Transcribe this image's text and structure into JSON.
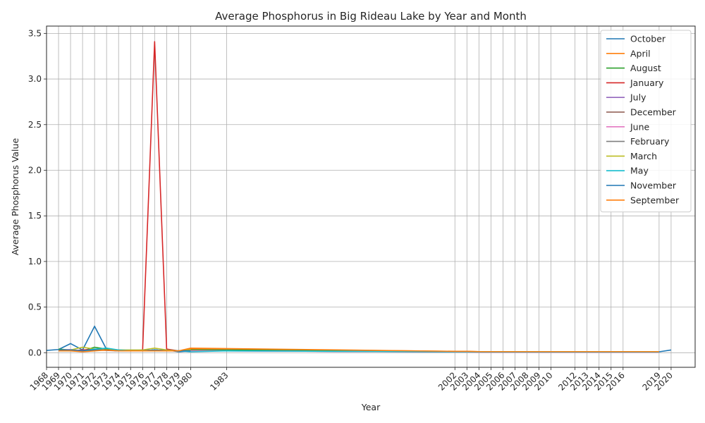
{
  "chart_data": {
    "type": "line",
    "title": "Average Phosphorus in Big Rideau Lake by Year and Month",
    "xlabel": "Year",
    "ylabel": "Average Phosphorus Value",
    "xlim": [
      1968,
      2022
    ],
    "ylim": [
      -0.16,
      3.58
    ],
    "yticks": [
      "0.0",
      "0.5",
      "1.0",
      "1.5",
      "2.0",
      "2.5",
      "3.0",
      "3.5"
    ],
    "ytick_values": [
      0,
      0.5,
      1,
      1.5,
      2,
      2.5,
      3,
      3.5
    ],
    "xticks": [
      {
        "year": 1968,
        "label": "1968"
      },
      {
        "year": 1969,
        "label": "1969"
      },
      {
        "year": 1970,
        "label": "1970"
      },
      {
        "year": 1971,
        "label": "1971"
      },
      {
        "year": 1972,
        "label": "1972"
      },
      {
        "year": 1973,
        "label": "1973"
      },
      {
        "year": 1974,
        "label": "1974"
      },
      {
        "year": 1975,
        "label": "1975"
      },
      {
        "year": 1976,
        "label": "1976"
      },
      {
        "year": 1977,
        "label": "1977"
      },
      {
        "year": 1978,
        "label": "1978"
      },
      {
        "year": 1979,
        "label": "1979"
      },
      {
        "year": 1980,
        "label": "1980"
      },
      {
        "year": 1983,
        "label": "1983"
      },
      {
        "year": 2002,
        "label": "2002"
      },
      {
        "year": 2003,
        "label": "2003"
      },
      {
        "year": 2004,
        "label": "2004"
      },
      {
        "year": 2005,
        "label": "2005"
      },
      {
        "year": 2006,
        "label": "2006"
      },
      {
        "year": 2007,
        "label": "2007"
      },
      {
        "year": 2008,
        "label": "2008"
      },
      {
        "year": 2009,
        "label": "2009"
      },
      {
        "year": 2010,
        "label": "2010"
      },
      {
        "year": 2012,
        "label": "2012"
      },
      {
        "year": 2013,
        "label": "2013"
      },
      {
        "year": 2014,
        "label": "2014"
      },
      {
        "year": 2015,
        "label": "2015"
      },
      {
        "year": 2016,
        "label": "2016"
      },
      {
        "year": 2019,
        "label": "2019"
      },
      {
        "year": 2020,
        "label": "2020"
      }
    ],
    "grid": true,
    "legend_position": "upper right",
    "series": [
      {
        "name": "October",
        "color": "#1f77b4",
        "x": [
          1968,
          1969,
          1970,
          1971,
          1972,
          1973,
          1974,
          1975,
          1976,
          1977,
          1978,
          1979,
          1980,
          1983,
          2003,
          2005,
          2007,
          2009,
          2012,
          2015,
          2019,
          2020
        ],
        "y": [
          0.025,
          0.035,
          0.1,
          0.03,
          0.29,
          0.035,
          0.025,
          0.02,
          0.02,
          0.02,
          0.03,
          0.01,
          0.02,
          0.02,
          0.01,
          0.01,
          0.01,
          0.01,
          0.01,
          0.01,
          0.01,
          0.03
        ]
      },
      {
        "name": "April",
        "color": "#ff7f0e",
        "x": [
          1969,
          1970,
          1971,
          1972,
          1973,
          1974,
          1975,
          1976,
          1977,
          1978,
          1979,
          1980,
          1983,
          2002,
          2003,
          2004,
          2005,
          2006,
          2007,
          2008,
          2009,
          2010,
          2012,
          2013,
          2014,
          2015,
          2016,
          2019
        ],
        "y": [
          0.03,
          0.02,
          0.02,
          0.03,
          0.03,
          0.025,
          0.02,
          0.02,
          0.03,
          0.02,
          0.02,
          0.04,
          0.04,
          0.015,
          0.015,
          0.012,
          0.01,
          0.01,
          0.01,
          0.01,
          0.01,
          0.01,
          0.01,
          0.01,
          0.01,
          0.01,
          0.01,
          0.01
        ]
      },
      {
        "name": "August",
        "color": "#2ca02c",
        "x": [
          1969,
          1970,
          1971,
          1972,
          1973,
          1974,
          1975,
          1976,
          1977,
          1978,
          1979,
          1980,
          1983,
          2002,
          2003,
          2004,
          2005,
          2006,
          2007,
          2008,
          2009,
          2010,
          2012,
          2013,
          2014,
          2015,
          2016,
          2019
        ],
        "y": [
          0.04,
          0.03,
          0.02,
          0.06,
          0.04,
          0.03,
          0.025,
          0.02,
          0.03,
          0.02,
          0.02,
          0.03,
          0.03,
          0.01,
          0.01,
          0.008,
          0.008,
          0.008,
          0.008,
          0.008,
          0.008,
          0.008,
          0.008,
          0.008,
          0.008,
          0.008,
          0.008,
          0.008
        ]
      },
      {
        "name": "January",
        "color": "#d62728",
        "x": [
          1969,
          1970,
          1971,
          1972,
          1973,
          1974,
          1975,
          1976,
          1977,
          1978,
          1979
        ],
        "y": [
          0.03,
          0.02,
          0.03,
          0.04,
          0.03,
          0.02,
          0.02,
          0.03,
          3.41,
          0.04,
          0.02
        ]
      },
      {
        "name": "July",
        "color": "#9467bd",
        "x": [
          1969,
          1970,
          1971,
          1972,
          1973,
          1974,
          1975,
          1976,
          1977,
          1978,
          1979,
          1980,
          1983,
          2002,
          2003,
          2004,
          2005,
          2006,
          2007,
          2008,
          2009,
          2010,
          2012,
          2013,
          2014,
          2015,
          2016,
          2019
        ],
        "y": [
          0.03,
          0.02,
          0.02,
          0.03,
          0.03,
          0.02,
          0.02,
          0.02,
          0.03,
          0.02,
          0.02,
          0.02,
          0.02,
          0.008,
          0.008,
          0.007,
          0.007,
          0.007,
          0.007,
          0.007,
          0.007,
          0.007,
          0.007,
          0.007,
          0.007,
          0.007,
          0.007,
          0.007
        ]
      },
      {
        "name": "December",
        "color": "#8c564b",
        "x": [
          1969,
          1970,
          1971,
          1972,
          1973,
          1974,
          1975,
          1976,
          1977,
          1978,
          1979
        ],
        "y": [
          0.03,
          0.025,
          0.02,
          0.03,
          0.025,
          0.02,
          0.02,
          0.02,
          0.03,
          0.02,
          0.02
        ]
      },
      {
        "name": "June",
        "color": "#e377c2",
        "x": [
          1969,
          1970,
          1971,
          1972,
          1973,
          1974,
          1975,
          1976,
          1977,
          1978,
          1979,
          1980,
          1983,
          2002,
          2003,
          2004,
          2005,
          2006,
          2007,
          2008,
          2009,
          2010,
          2012,
          2013,
          2014,
          2015,
          2016,
          2019
        ],
        "y": [
          0.03,
          0.035,
          0.02,
          0.025,
          0.03,
          0.02,
          0.02,
          0.02,
          0.025,
          0.02,
          0.02,
          0.02,
          0.02,
          0.008,
          0.008,
          0.007,
          0.007,
          0.007,
          0.007,
          0.007,
          0.007,
          0.007,
          0.007,
          0.007,
          0.007,
          0.007,
          0.007,
          0.007
        ]
      },
      {
        "name": "February",
        "color": "#7f7f7f",
        "x": [
          1969,
          1970,
          1971,
          1972,
          1973,
          1974,
          1975,
          1976,
          1977,
          1978,
          1979
        ],
        "y": [
          0.03,
          0.02,
          0.02,
          0.03,
          0.03,
          0.02,
          0.02,
          0.02,
          0.03,
          0.02,
          0.02
        ]
      },
      {
        "name": "March",
        "color": "#bcbd22",
        "x": [
          1969,
          1970,
          1971,
          1972,
          1973,
          1974,
          1975,
          1976,
          1977,
          1978,
          1979,
          1980
        ],
        "y": [
          0.03,
          0.03,
          0.06,
          0.04,
          0.03,
          0.03,
          0.03,
          0.03,
          0.05,
          0.03,
          0.02,
          0.03
        ]
      },
      {
        "name": "May",
        "color": "#17becf",
        "x": [
          1969,
          1970,
          1971,
          1972,
          1973,
          1974,
          1975,
          1976,
          1977,
          1978,
          1979,
          1980,
          1983,
          2002,
          2003,
          2004,
          2005,
          2006,
          2007,
          2008,
          2009,
          2010,
          2012,
          2013,
          2014,
          2015,
          2016,
          2019
        ],
        "y": [
          0.03,
          0.02,
          0.02,
          0.04,
          0.05,
          0.03,
          0.02,
          0.02,
          0.03,
          0.02,
          0.02,
          0.01,
          0.02,
          0.01,
          0.01,
          0.008,
          0.008,
          0.008,
          0.008,
          0.008,
          0.008,
          0.008,
          0.008,
          0.008,
          0.008,
          0.008,
          0.008,
          0.008
        ]
      },
      {
        "name": "November",
        "color": "#1f77b4",
        "x": [
          1969,
          1970,
          1971,
          1972,
          1973,
          1974,
          1975,
          1976,
          1977,
          1978,
          1979,
          1980
        ],
        "y": [
          0.03,
          0.03,
          0.02,
          0.03,
          0.03,
          0.02,
          0.02,
          0.02,
          0.03,
          0.02,
          0.02,
          0.02
        ]
      },
      {
        "name": "September",
        "color": "#ff7f0e",
        "x": [
          1969,
          1970,
          1971,
          1972,
          1973,
          1974,
          1975,
          1976,
          1977,
          1978,
          1979,
          1980,
          1983,
          2002,
          2003,
          2004,
          2005,
          2006,
          2007,
          2008,
          2009,
          2010,
          2012,
          2013,
          2014,
          2015,
          2016,
          2019
        ],
        "y": [
          0.02,
          0.02,
          0.01,
          0.02,
          0.03,
          0.02,
          0.02,
          0.02,
          0.02,
          0.02,
          0.02,
          0.05,
          0.045,
          0.015,
          0.015,
          0.012,
          0.012,
          0.012,
          0.012,
          0.012,
          0.012,
          0.012,
          0.012,
          0.012,
          0.012,
          0.012,
          0.012,
          0.012
        ]
      }
    ]
  }
}
